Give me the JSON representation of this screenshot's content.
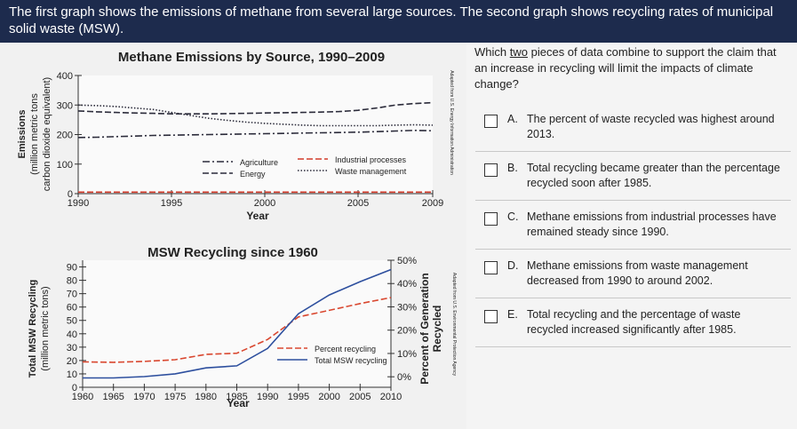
{
  "header": {
    "text": "The first graph shows the emissions of methane from several large sources. The second graph shows recycling rates of municipal solid waste (MSW)."
  },
  "charts": [
    {
      "type": "line",
      "title": "Methane Emissions by Source, 1990–2009",
      "y_label": [
        "Emissions",
        "(million metric tons",
        "carbon dioxide equivalent)"
      ],
      "x_label": "Year",
      "source": "Adapted from U.S. Energy Information Administration",
      "x": [
        1990,
        1991,
        1992,
        1993,
        1994,
        1995,
        1996,
        1997,
        1998,
        1999,
        2000,
        2001,
        2002,
        2003,
        2004,
        2005,
        2006,
        2007,
        2008,
        2009
      ],
      "xlim": [
        1990,
        2009
      ],
      "xticks": [
        1990,
        1995,
        2000,
        2005,
        2009
      ],
      "ylim": [
        0,
        400
      ],
      "yticks": [
        0,
        100,
        200,
        300,
        400
      ],
      "series": [
        {
          "name": "Agriculture",
          "color": "#2b2b3a",
          "style": "dash-dot",
          "values": [
            190,
            191,
            193,
            195,
            197,
            198,
            199,
            200,
            201,
            202,
            203,
            204,
            205,
            206,
            207,
            208,
            210,
            212,
            214,
            213
          ]
        },
        {
          "name": "Energy",
          "color": "#2b2b3a",
          "style": "dash",
          "values": [
            280,
            277,
            275,
            273,
            272,
            270,
            270,
            270,
            271,
            272,
            273,
            274,
            275,
            276,
            278,
            282,
            290,
            300,
            305,
            308
          ]
        },
        {
          "name": "Industrial processes",
          "color": "#d23a2a",
          "style": "dash",
          "values": [
            5,
            5,
            5,
            5,
            5,
            5,
            5,
            5,
            5,
            5,
            5,
            5,
            5,
            5,
            5,
            5,
            5,
            5,
            5,
            5
          ]
        },
        {
          "name": "Waste management",
          "color": "#2b2b3a",
          "style": "dot",
          "values": [
            300,
            298,
            295,
            290,
            285,
            275,
            265,
            255,
            248,
            242,
            238,
            235,
            232,
            230,
            230,
            230,
            230,
            232,
            233,
            232
          ]
        }
      ]
    },
    {
      "type": "line",
      "title": "MSW Recycling since 1960",
      "y_label": [
        "Total MSW Recycling",
        "(million metric tons)"
      ],
      "y2_label": [
        "Percent of Generation",
        "Recycled"
      ],
      "x_label": "Year",
      "source": "Adapted from U.S. Environmental Protection Agency",
      "x": [
        1960,
        1965,
        1970,
        1975,
        1980,
        1985,
        1990,
        1995,
        2000,
        2005,
        2010
      ],
      "xlim": [
        1960,
        2010
      ],
      "xticks": [
        1960,
        1965,
        1970,
        1975,
        1980,
        1985,
        1990,
        1995,
        2000,
        2005,
        2010
      ],
      "ylim": [
        0,
        95
      ],
      "yticks": [
        0,
        10,
        20,
        30,
        40,
        50,
        60,
        70,
        80,
        90
      ],
      "y2lim": [
        -4.5,
        50
      ],
      "y2ticks": [
        {
          "value": 0,
          "label": "0%"
        },
        {
          "value": 10,
          "label": "10%"
        },
        {
          "value": 20,
          "label": "20%"
        },
        {
          "value": 30,
          "label": "30%"
        },
        {
          "value": 40,
          "label": "40%"
        },
        {
          "value": 50,
          "label": "50%"
        }
      ],
      "series": [
        {
          "name": "Percent recycling",
          "color": "#d9472f",
          "style": "dash",
          "axis": "y2",
          "values": [
            6.4,
            6.2,
            6.6,
            7.3,
            9.6,
            10.1,
            16,
            25.7,
            28.5,
            31.4,
            34
          ]
        },
        {
          "name": "Total MSW recycling",
          "color": "#2d4f9e",
          "style": "solid",
          "values": [
            7,
            7,
            8,
            10,
            14.5,
            16,
            29,
            55,
            69,
            79,
            88
          ]
        }
      ]
    }
  ],
  "question": {
    "prompt_start": "Which",
    "prompt_emphasis": "two",
    "prompt_end": "pieces of data combine to support the claim that an increase in recycling will limit the impacts of climate change?",
    "options": [
      {
        "letter": "A.",
        "text": "The percent of waste recycled was highest around 2013."
      },
      {
        "letter": "B.",
        "text": "Total recycling became greater than the percentage recycled soon after 1985."
      },
      {
        "letter": "C.",
        "text": "Methane emissions from industrial processes have remained steady since 1990."
      },
      {
        "letter": "D.",
        "text": "Methane emissions from waste management decreased from 1990 to around 2002."
      },
      {
        "letter": "E.",
        "text": "Total recycling and the percentage of waste recycled increased significantly after 1985."
      }
    ]
  }
}
